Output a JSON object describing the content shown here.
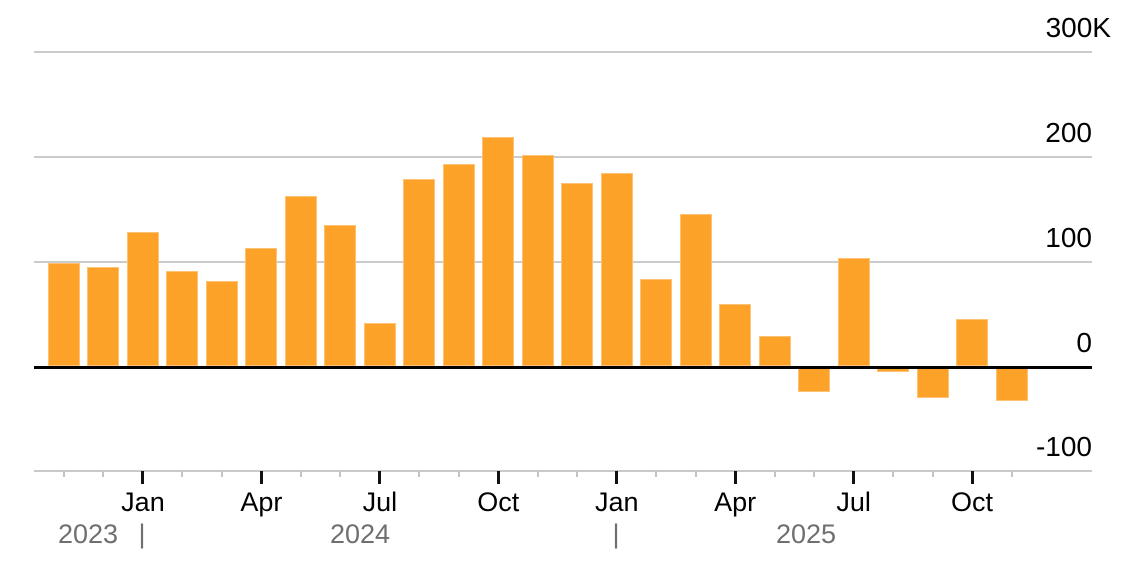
{
  "chart_data": {
    "type": "bar",
    "title": "",
    "unit_suffix": "K",
    "grid": true,
    "legend": "none",
    "ylim": [
      -100,
      300
    ],
    "colors": {
      "bar": "#FCA228",
      "gridline": "#CBCBCB",
      "zero_line": "#000000",
      "axis_line": "#C9C9C9",
      "minor_tick": "#C4C4C4",
      "major_tick": "#111111",
      "axis_text": "#000000",
      "year_text": "#6F6F6F"
    },
    "y_ticks": [
      {
        "label": "300K",
        "value": 300
      },
      {
        "label": "200",
        "value": 200
      },
      {
        "label": "100",
        "value": 100
      },
      {
        "label": "0",
        "value": 0
      },
      {
        "label": "-100",
        "value": -100
      }
    ],
    "categories": [
      {
        "month": "Nov 2023",
        "value": 99,
        "tick": "minor"
      },
      {
        "month": "Dec 2023",
        "value": 95,
        "tick": "minor"
      },
      {
        "month": "Jan 2024",
        "value": 128,
        "tick": "major",
        "label": "Jan"
      },
      {
        "month": "Feb 2024",
        "value": 91,
        "tick": "minor"
      },
      {
        "month": "Mar 2024",
        "value": 82,
        "tick": "minor"
      },
      {
        "month": "Apr 2024",
        "value": 113,
        "tick": "major",
        "label": "Apr"
      },
      {
        "month": "May 2024",
        "value": 163,
        "tick": "minor"
      },
      {
        "month": "Jun 2024",
        "value": 135,
        "tick": "minor"
      },
      {
        "month": "Jul 2024",
        "value": 42,
        "tick": "major",
        "label": "Jul"
      },
      {
        "month": "Aug 2024",
        "value": 179,
        "tick": "minor"
      },
      {
        "month": "Sep 2024",
        "value": 193,
        "tick": "minor"
      },
      {
        "month": "Oct 2024",
        "value": 219,
        "tick": "major",
        "label": "Oct"
      },
      {
        "month": "Nov 2024",
        "value": 202,
        "tick": "minor"
      },
      {
        "month": "Dec 2024",
        "value": 175,
        "tick": "minor"
      },
      {
        "month": "Jan 2025",
        "value": 185,
        "tick": "major",
        "label": "Jan"
      },
      {
        "month": "Feb 2025",
        "value": 84,
        "tick": "minor"
      },
      {
        "month": "Mar 2025",
        "value": 146,
        "tick": "minor"
      },
      {
        "month": "Apr 2025",
        "value": 60,
        "tick": "major",
        "label": "Apr"
      },
      {
        "month": "May 2025",
        "value": 29,
        "tick": "minor"
      },
      {
        "month": "Jun 2025",
        "value": -23,
        "tick": "minor"
      },
      {
        "month": "Jul 2025",
        "value": 104,
        "tick": "major",
        "label": "Jul"
      },
      {
        "month": "Aug 2025",
        "value": -4,
        "tick": "minor"
      },
      {
        "month": "Sep 2025",
        "value": -29,
        "tick": "minor"
      },
      {
        "month": "Oct 2025",
        "value": 45,
        "tick": "major",
        "label": "Oct"
      },
      {
        "month": "Nov 2025",
        "value": -32,
        "tick": "minor"
      }
    ],
    "year_annotations": [
      {
        "text": "2023",
        "x": 88
      },
      {
        "text": "|",
        "x": 142
      },
      {
        "text": "2024",
        "x": 360
      },
      {
        "text": "|",
        "x": 616
      },
      {
        "text": "2025",
        "x": 806
      }
    ]
  }
}
